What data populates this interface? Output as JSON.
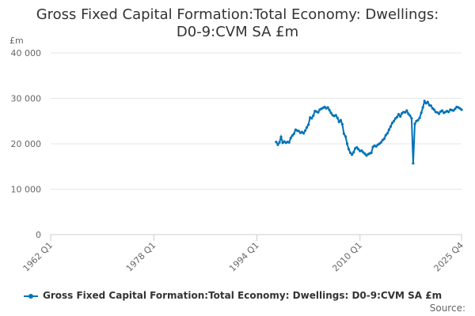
{
  "chart_data": {
    "type": "line",
    "title_line1": "Gross Fixed Capital Formation:Total Economy: Dwellings:",
    "title_line2": "D0-9:CVM SA £m",
    "ylabel": "£m",
    "ylim": [
      0,
      40000
    ],
    "y_ticks": [
      0,
      10000,
      20000,
      30000,
      40000
    ],
    "y_tick_labels": [
      "0",
      "10 000",
      "20 000",
      "30 000",
      "40 000"
    ],
    "x_tick_labels": [
      "1962 Q1",
      "1978 Q1",
      "1994 Q1",
      "2010 Q1",
      "2025 Q4"
    ],
    "x_tick_values": [
      1962.0,
      1978.0,
      1994.0,
      2010.0,
      2025.75
    ],
    "xlim": [
      1962.0,
      2025.75
    ],
    "series": [
      {
        "name": "Gross Fixed Capital Formation:Total Economy: Dwellings: D0-9:CVM SA £m",
        "color": "#0072b6",
        "x": [
          1997.0,
          1997.25,
          1997.5,
          1997.75,
          1998.0,
          1998.25,
          1998.5,
          1998.75,
          1999.0,
          1999.25,
          1999.5,
          1999.75,
          2000.0,
          2000.25,
          2000.5,
          2000.75,
          2001.0,
          2001.25,
          2001.5,
          2001.75,
          2002.0,
          2002.25,
          2002.5,
          2002.75,
          2003.0,
          2003.25,
          2003.5,
          2003.75,
          2004.0,
          2004.25,
          2004.5,
          2004.75,
          2005.0,
          2005.25,
          2005.5,
          2005.75,
          2006.0,
          2006.25,
          2006.5,
          2006.75,
          2007.0,
          2007.25,
          2007.5,
          2007.75,
          2008.0,
          2008.25,
          2008.5,
          2008.75,
          2009.0,
          2009.25,
          2009.5,
          2009.75,
          2010.0,
          2010.25,
          2010.5,
          2010.75,
          2011.0,
          2011.25,
          2011.5,
          2011.75,
          2012.0,
          2012.25,
          2012.5,
          2012.75,
          2013.0,
          2013.25,
          2013.5,
          2013.75,
          2014.0,
          2014.25,
          2014.5,
          2014.75,
          2015.0,
          2015.25,
          2015.5,
          2015.75,
          2016.0,
          2016.25,
          2016.5,
          2016.75,
          2017.0,
          2017.25,
          2017.5,
          2017.75,
          2018.0,
          2018.25,
          2018.5,
          2018.75,
          2019.0,
          2019.25,
          2019.5,
          2019.75,
          2020.0,
          2020.25,
          2020.5,
          2020.75,
          2021.0,
          2021.25,
          2021.5,
          2021.75,
          2022.0,
          2022.25,
          2022.5,
          2022.75,
          2023.0,
          2023.25,
          2023.5,
          2023.75,
          2024.0,
          2024.25,
          2024.5,
          2024.75,
          2025.0,
          2025.25,
          2025.5,
          2025.75
        ],
        "values": [
          20400,
          19800,
          20300,
          21500,
          20200,
          20500,
          20200,
          20400,
          20300,
          21300,
          21800,
          22200,
          23100,
          22900,
          22800,
          22400,
          22600,
          22300,
          22900,
          23600,
          24200,
          25800,
          25600,
          26200,
          27200,
          27100,
          26900,
          27500,
          27700,
          27900,
          28100,
          27800,
          28000,
          27400,
          26800,
          26300,
          26100,
          26300,
          25700,
          24800,
          25200,
          24300,
          22200,
          21600,
          20000,
          18800,
          18000,
          17600,
          18100,
          19000,
          19200,
          18800,
          18400,
          18500,
          18100,
          17800,
          17400,
          17700,
          17900,
          18000,
          19300,
          19600,
          19400,
          19800,
          20000,
          20300,
          20800,
          21100,
          21900,
          22300,
          23100,
          23800,
          24600,
          25000,
          25600,
          25900,
          26500,
          26000,
          26700,
          27000,
          26900,
          27300,
          26600,
          26200,
          25600,
          15700,
          24400,
          25000,
          25200,
          25700,
          26800,
          28000,
          29400,
          28900,
          29200,
          28500,
          28400,
          27800,
          27500,
          27000,
          26900,
          26600,
          27100,
          27300,
          26800,
          27000,
          27200,
          27000,
          27500,
          27400,
          27300,
          27700,
          28100,
          28000,
          27800,
          27500
        ]
      }
    ]
  },
  "source_label": "Source:"
}
